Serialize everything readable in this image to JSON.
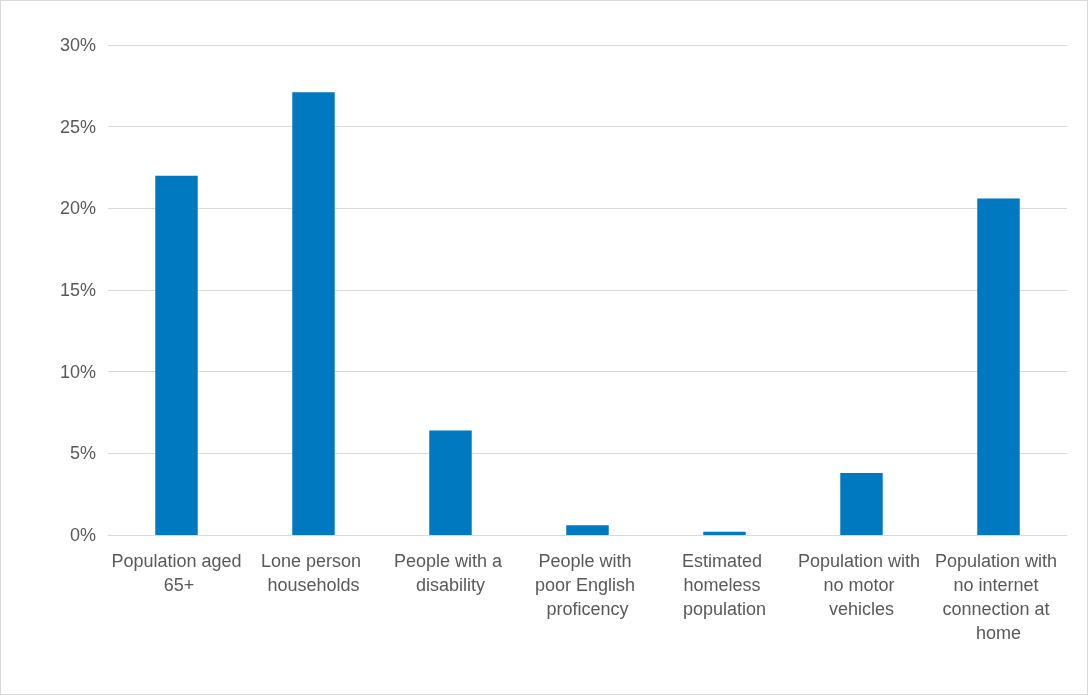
{
  "chart_data": {
    "type": "bar",
    "categories": [
      "Population aged 65+",
      "Lone person households",
      "People with a disability",
      "People with poor English proficency",
      "Estimated homeless population",
      "Population with no motor vehicles",
      "Population with no internet connection at home"
    ],
    "values": [
      22.0,
      27.1,
      6.4,
      0.6,
      0.2,
      3.8,
      20.6
    ],
    "color": "#0079c1",
    "ylim": [
      0,
      30
    ],
    "yticks": [
      {
        "value": 0,
        "label": "0%"
      },
      {
        "value": 5,
        "label": "5%"
      },
      {
        "value": 10,
        "label": "10%"
      },
      {
        "value": 15,
        "label": "15%"
      },
      {
        "value": 20,
        "label": "20%"
      },
      {
        "value": 25,
        "label": "25%"
      },
      {
        "value": 30,
        "label": "30%"
      }
    ],
    "grid": "y"
  }
}
